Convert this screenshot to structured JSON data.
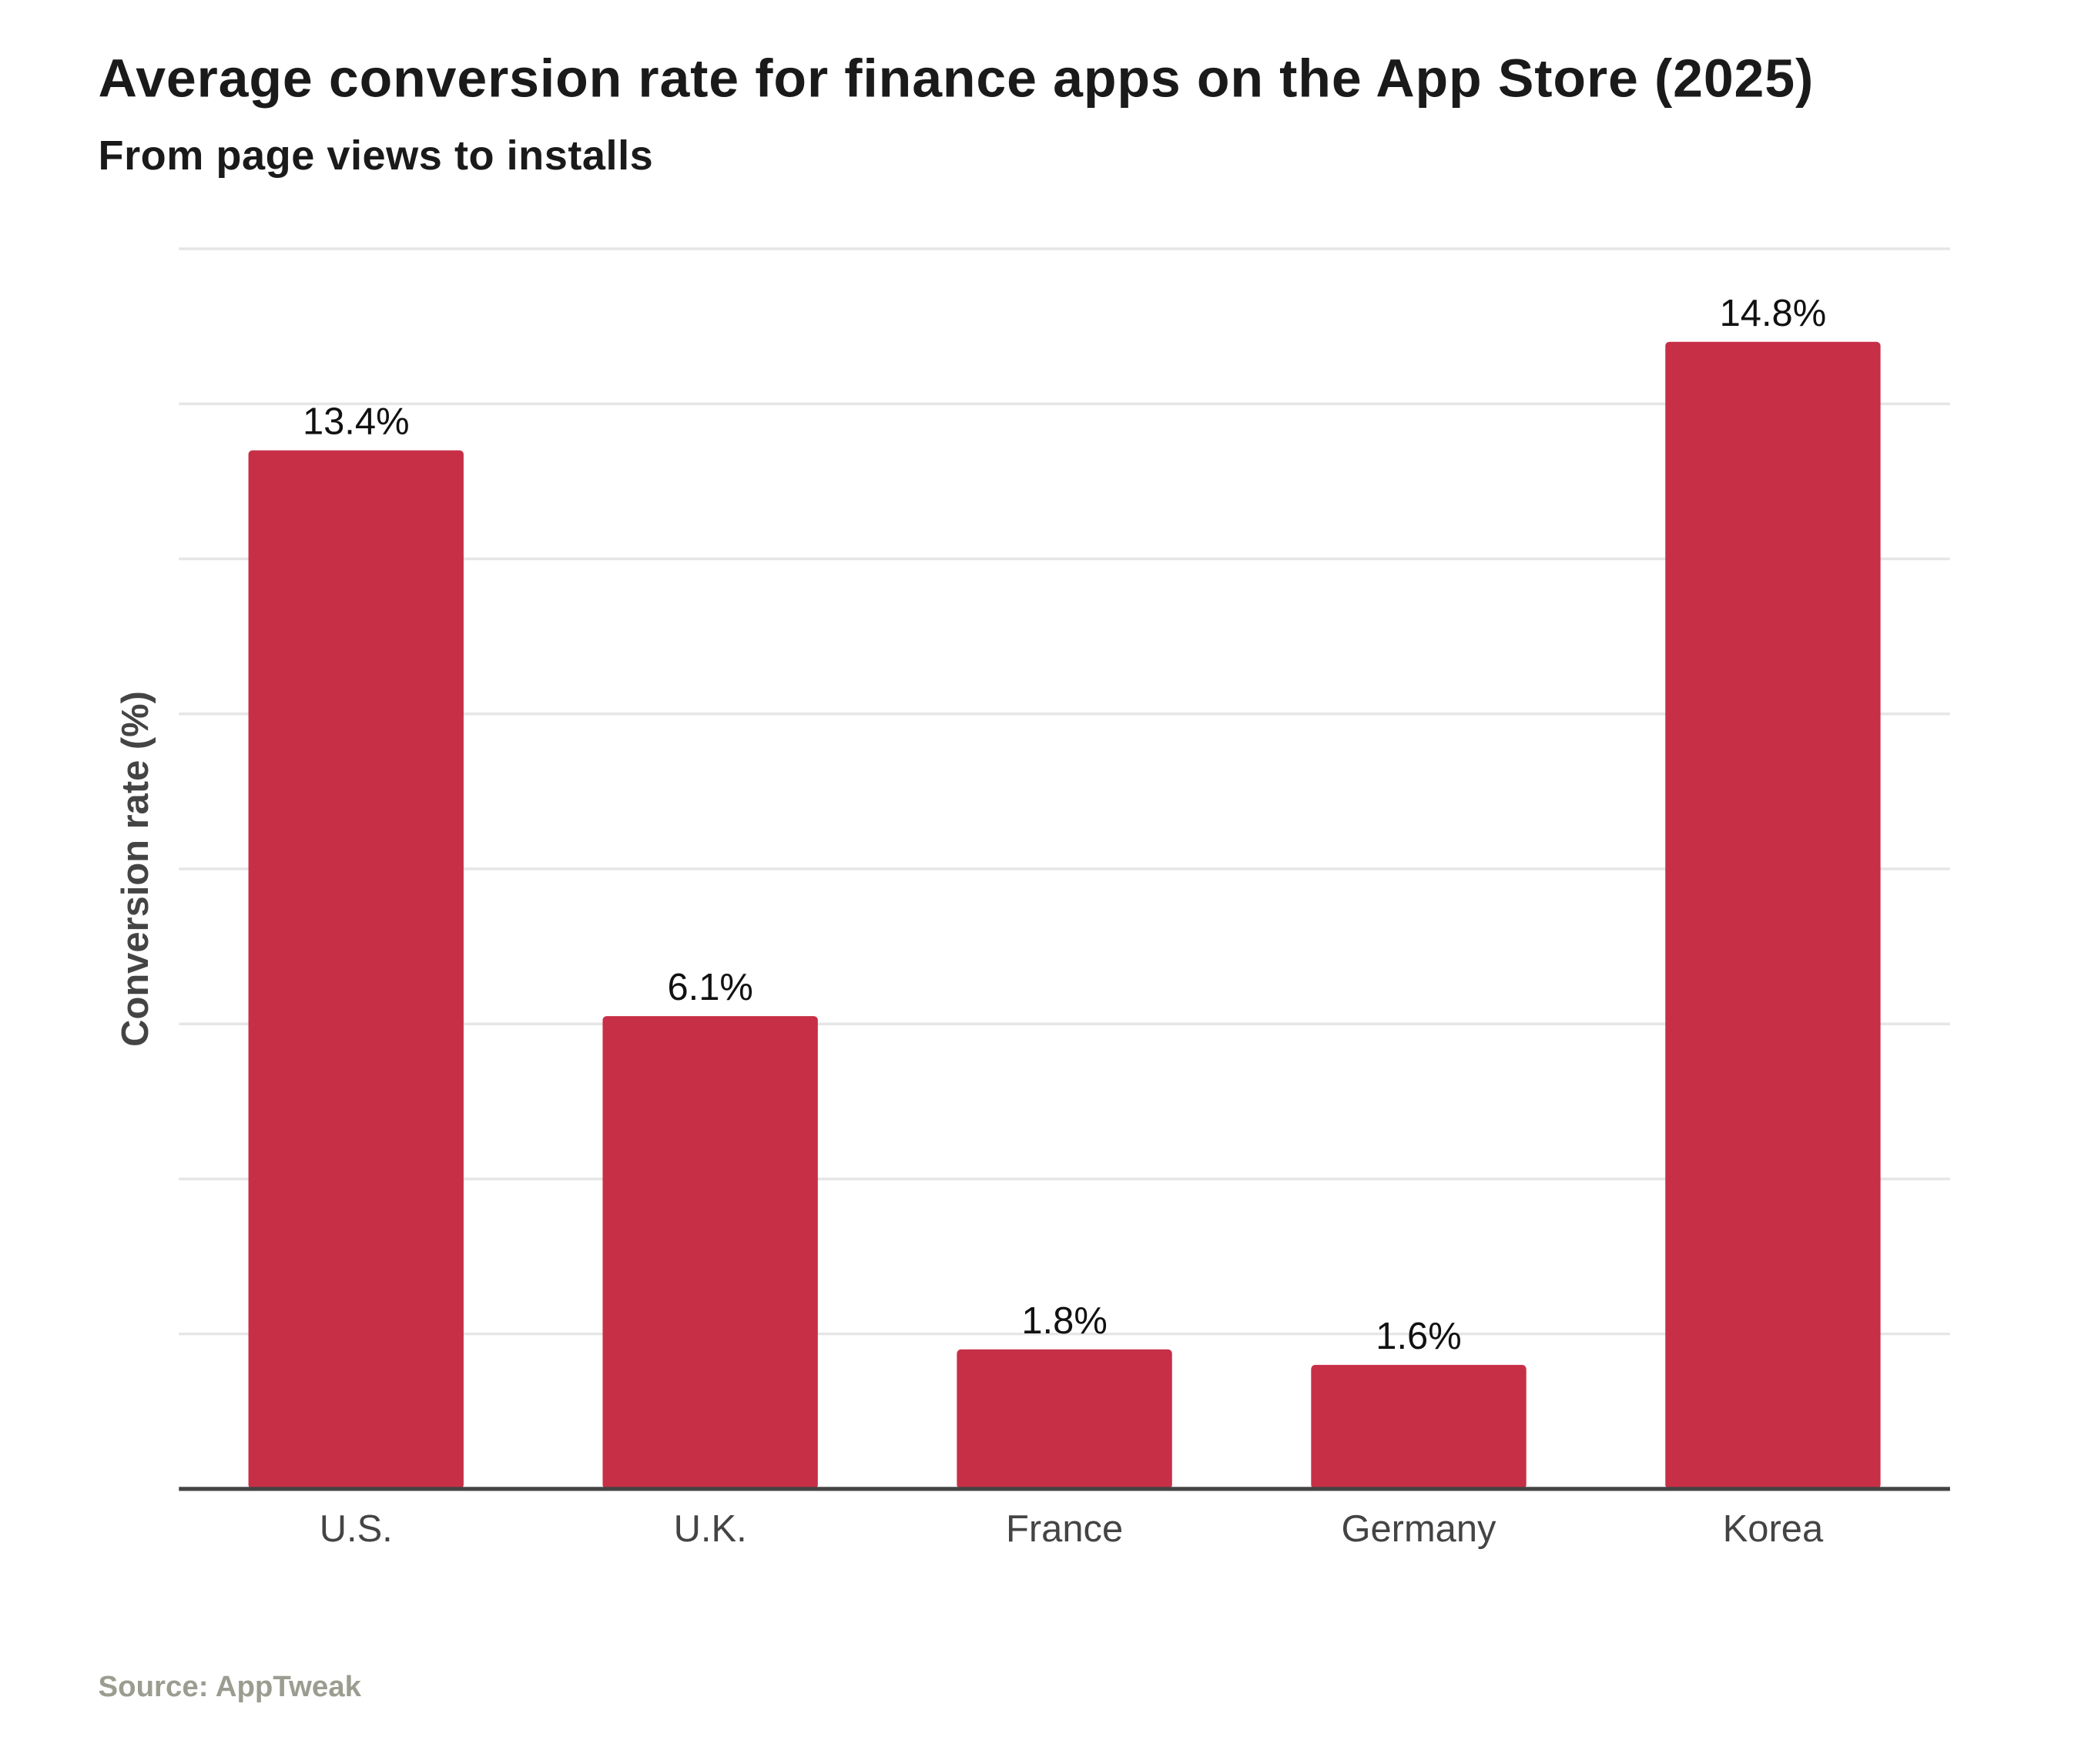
{
  "chart_data": {
    "type": "bar",
    "title": "Average conversion rate for finance apps on the App Store (2025)",
    "subtitle": "From page views to installs",
    "xlabel": "",
    "ylabel": "Conversion rate (%)",
    "categories": [
      "U.S.",
      "U.K.",
      "France",
      "Germany",
      "Korea"
    ],
    "values": [
      13.4,
      6.1,
      1.8,
      1.6,
      14.8
    ],
    "data_labels": [
      "13.4%",
      "6.1%",
      "1.8%",
      "1.6%",
      "14.8%"
    ],
    "ylim": [
      0,
      16
    ],
    "grid": true,
    "grid_step": 2,
    "y_tick_labels_shown": false,
    "legend": "none",
    "bar_color": "#c72f47",
    "source": "Source: AppTweak"
  }
}
